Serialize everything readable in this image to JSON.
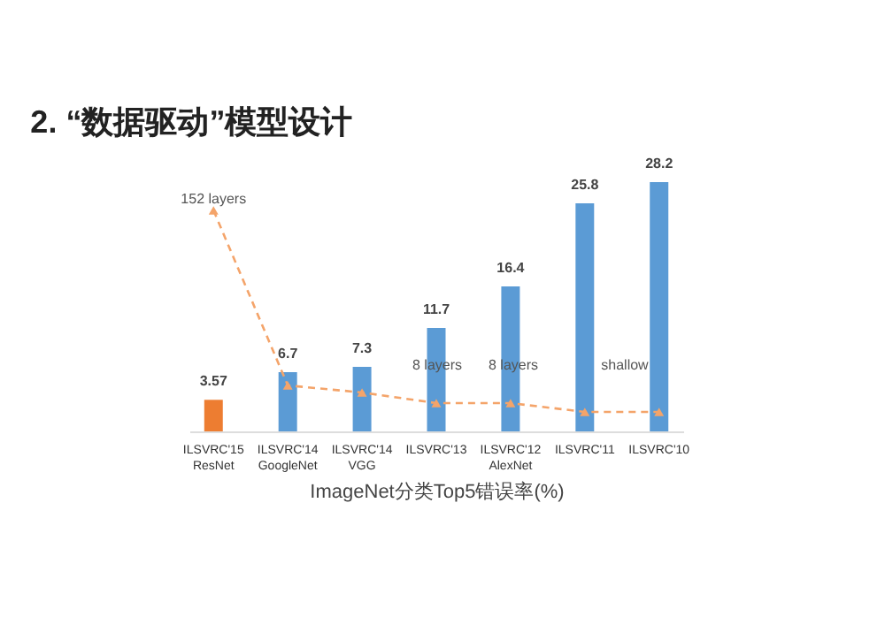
{
  "chart_data": {
    "type": "bar",
    "title": "2. “数据驱动”模型设计",
    "xlabel": "ImageNet分类Top5错误率(%)",
    "categories": [
      "ILSVRC'15\nResNet",
      "ILSVRC'14\nGoogleNet",
      "ILSVRC'14\nVGG",
      "ILSVRC'13",
      "ILSVRC'12\nAlexNet",
      "ILSVRC'11",
      "ILSVRC'10"
    ],
    "series": [
      {
        "values": [
          3.57,
          6.7,
          7.3,
          11.7,
          16.4,
          25.8,
          28.2
        ],
        "value_labels": [
          "3.57",
          "6.7",
          "7.3",
          "11.7",
          "16.4",
          "25.8",
          "28.2"
        ],
        "colors": [
          "#ed7d31",
          "#5b9bd5",
          "#5b9bd5",
          "#5b9bd5",
          "#5b9bd5",
          "#5b9bd5",
          "#5b9bd5"
        ]
      },
      {
        "type": "line",
        "color": "#f4a46a",
        "line_style": "dashed",
        "marker": "triangle",
        "values": [
          25.0,
          5.2,
          4.4,
          3.2,
          3.2,
          2.2,
          2.2
        ]
      }
    ],
    "annotations": [
      {
        "text": "152 layers",
        "x": "ILSVRC'15\nResNet",
        "y": 26.2
      },
      "8 layers",
      "8 layers",
      "shallow"
    ]
  }
}
